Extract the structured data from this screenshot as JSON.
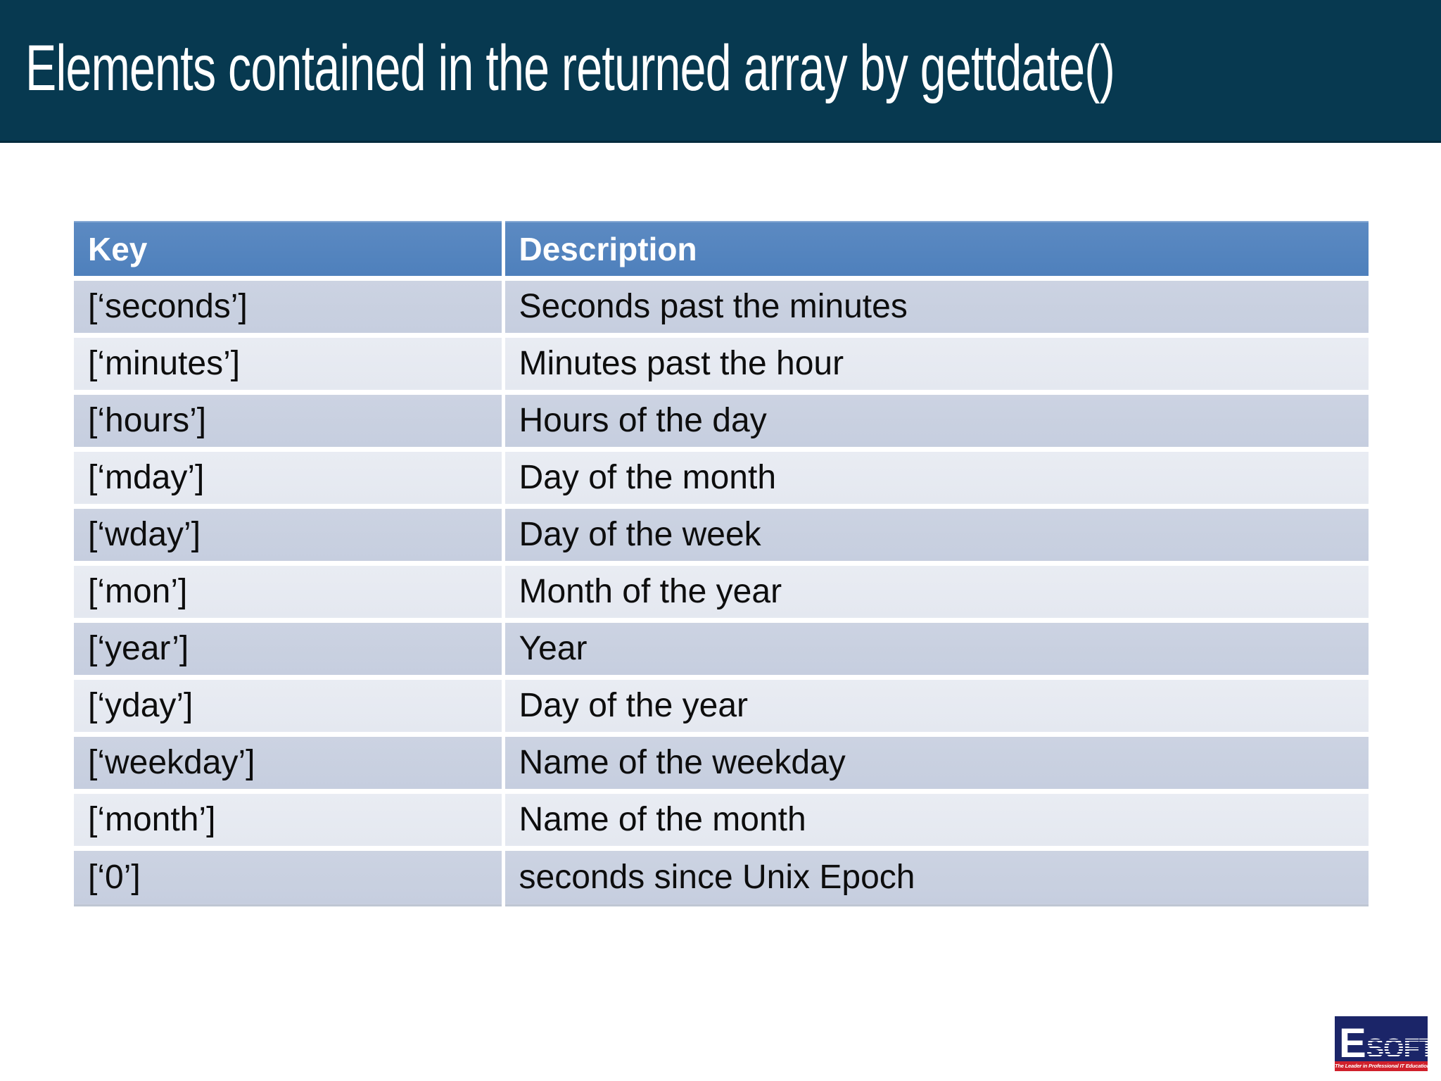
{
  "slide": {
    "title": "Elements contained in the returned array by gettdate()"
  },
  "table": {
    "columns": [
      "Key",
      "Description"
    ],
    "rows": [
      {
        "key": "[‘seconds’]",
        "description": "Seconds past the minutes"
      },
      {
        "key": "[‘minutes’]",
        "description": "Minutes past the hour"
      },
      {
        "key": "[‘hours’]",
        "description": "Hours of the day"
      },
      {
        "key": "[‘mday’]",
        "description": "Day of the month"
      },
      {
        "key": "[‘wday’]",
        "description": "Day of the week"
      },
      {
        "key": "[‘mon’]",
        "description": "Month of the year"
      },
      {
        "key": "[‘year’]",
        "description": "Year"
      },
      {
        "key": "[‘yday’]",
        "description": "Day of the year"
      },
      {
        "key": "[‘weekday’]",
        "description": "Name of the weekday"
      },
      {
        "key": "[‘month’]",
        "description": "Name of the month"
      },
      {
        "key": "[‘0’]",
        "description": "seconds since Unix Epoch"
      }
    ]
  },
  "logo": {
    "letter": "E",
    "rest": "SOFT",
    "tagline": "The Leader in Professional IT Education"
  },
  "colors": {
    "title_bar": "#073950",
    "header_blue": "#4e80bc",
    "row_dark": "#ccd3e2",
    "row_light": "#e9ecf3",
    "logo_navy": "#1b2568",
    "logo_red": "#d0202b"
  }
}
